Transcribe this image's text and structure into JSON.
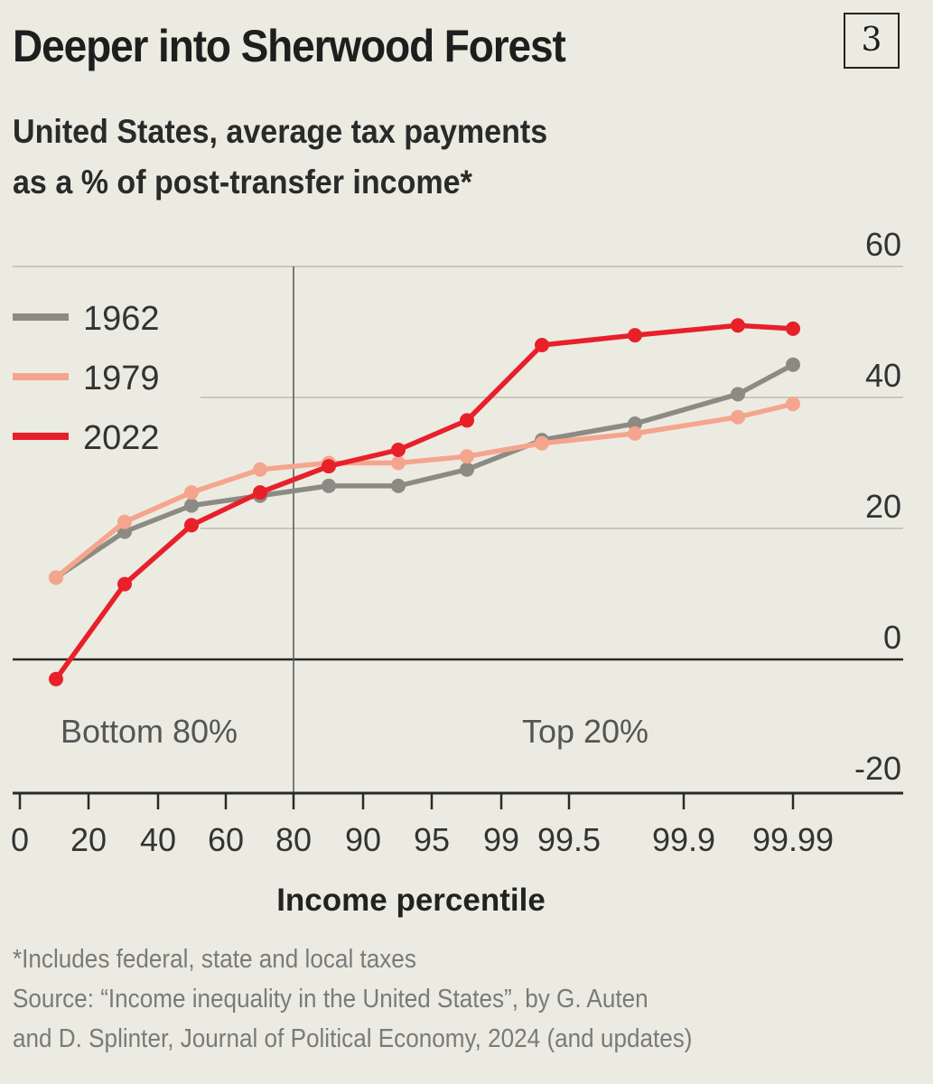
{
  "header": {
    "title": "Deeper into Sherwood Forest",
    "badge": "3",
    "subtitle_line1": "United States, average tax payments",
    "subtitle_line2": "as a % of post-transfer income*"
  },
  "chart_data": {
    "type": "line",
    "xlabel": "Income percentile",
    "ylabel": "",
    "ylim": [
      -20,
      60
    ],
    "yticks": [
      -20,
      0,
      20,
      40,
      60
    ],
    "xticks": [
      "0",
      "20",
      "40",
      "60",
      "80",
      "90",
      "95",
      "99",
      "99.5",
      "99.9",
      "99.99"
    ],
    "x": [
      "10",
      "30",
      "50",
      "70",
      "85",
      "92.5",
      "97",
      "99.25",
      "99.75",
      "99.95",
      "99.99"
    ],
    "regions": [
      "Bottom 80%",
      "Top 20%"
    ],
    "divider_at": "80",
    "grid": true,
    "legend_position": "top-left",
    "series": [
      {
        "name": "1962",
        "color": "#8b8b84",
        "values": [
          12.5,
          19.5,
          23.5,
          25,
          26.5,
          26.5,
          29,
          33.5,
          36,
          40.5,
          45
        ]
      },
      {
        "name": "1979",
        "color": "#f5a58e",
        "values": [
          12.5,
          21,
          25.5,
          29,
          30,
          30,
          31,
          33,
          34.5,
          37,
          39
        ]
      },
      {
        "name": "2022",
        "color": "#e8202a",
        "values": [
          -3,
          11.5,
          20.5,
          25.5,
          29.5,
          32,
          36.5,
          48,
          49.5,
          51,
          50.5
        ]
      }
    ]
  },
  "footnote": {
    "note": "*Includes federal, state and local taxes",
    "source_line1": "Source: “Income inequality in the United States”, by G. Auten",
    "source_line2": "and D. Splinter, Journal of Political Economy, 2024 (and updates)"
  }
}
